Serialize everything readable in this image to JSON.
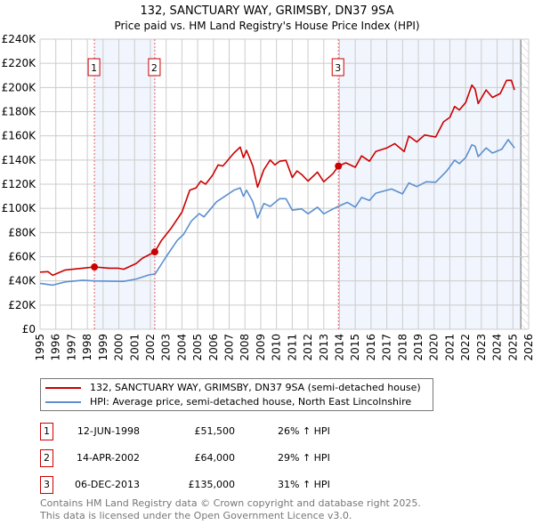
{
  "chart_data": {
    "type": "line",
    "title": "132, SANCTUARY WAY, GRIMSBY, DN37 9SA",
    "subtitle": "Price paid vs. HM Land Registry's House Price Index (HPI)",
    "xlim": [
      1995,
      2026
    ],
    "ylim": [
      0,
      240000
    ],
    "y_ticks": [
      0,
      20000,
      40000,
      60000,
      80000,
      100000,
      120000,
      140000,
      160000,
      180000,
      200000,
      220000,
      240000
    ],
    "y_tick_labels": [
      "£0",
      "£20K",
      "£40K",
      "£60K",
      "£80K",
      "£100K",
      "£120K",
      "£140K",
      "£160K",
      "£180K",
      "£200K",
      "£220K",
      "£240K"
    ],
    "x_ticks": [
      "1995",
      "1996",
      "1997",
      "1998",
      "1999",
      "2000",
      "2001",
      "2002",
      "2003",
      "2004",
      "2005",
      "2006",
      "2007",
      "2008",
      "2009",
      "2010",
      "2011",
      "2012",
      "2013",
      "2014",
      "2015",
      "2016",
      "2017",
      "2018",
      "2019",
      "2020",
      "2021",
      "2022",
      "2023",
      "2024",
      "2025",
      "2026"
    ],
    "grid": true,
    "shaded_periods": [
      [
        1998.45,
        2002.28
      ],
      [
        2013.93,
        2025.5
      ]
    ],
    "future_hatch_from": 2025.5,
    "series": [
      {
        "name": "132, SANCTUARY WAY, GRIMSBY, DN37 9SA (semi-detached house)",
        "color": "#cc0000",
        "x": [
          1995.0,
          1995.5,
          1995.8,
          1996.6,
          1997.7,
          1998.45,
          1999.4,
          1999.95,
          2000.3,
          2001.1,
          2001.5,
          2002.28,
          2002.7,
          2003.3,
          2004.0,
          2004.5,
          2004.9,
          2005.2,
          2005.5,
          2005.95,
          2006.3,
          2006.6,
          2007.3,
          2007.7,
          2007.9,
          2008.1,
          2008.5,
          2008.8,
          2009.2,
          2009.6,
          2009.9,
          2010.2,
          2010.6,
          2011.0,
          2011.3,
          2011.6,
          2012.0,
          2012.6,
          2013.0,
          2013.6,
          2013.93,
          2014.4,
          2015.0,
          2015.4,
          2015.9,
          2016.3,
          2017.0,
          2017.5,
          2018.1,
          2018.4,
          2018.9,
          2019.4,
          2020.1,
          2020.6,
          2021.0,
          2021.3,
          2021.6,
          2022.0,
          2022.4,
          2022.6,
          2022.8,
          2023.3,
          2023.7,
          2024.2,
          2024.6,
          2024.9,
          2025.1
        ],
        "values": [
          47300,
          47600,
          44600,
          49000,
          50500,
          51500,
          50500,
          50500,
          49600,
          54400,
          58800,
          64000,
          73500,
          83300,
          96800,
          115000,
          117000,
          122500,
          120000,
          127400,
          136000,
          135000,
          145800,
          150700,
          142000,
          148000,
          135000,
          117600,
          132000,
          140000,
          136000,
          139000,
          139700,
          125500,
          131000,
          128000,
          122600,
          130000,
          122000,
          129000,
          135000,
          137700,
          134000,
          143400,
          139000,
          147000,
          150000,
          153600,
          147000,
          159800,
          155000,
          160700,
          159000,
          171600,
          175300,
          184300,
          181400,
          187500,
          202000,
          198700,
          186800,
          198000,
          191800,
          195000,
          205900,
          206000,
          198000
        ]
      },
      {
        "name": "HPI: Average price, semi-detached house, North East Lincolnshire",
        "color": "#5b8fd0",
        "x": [
          1995.0,
          1995.8,
          1996.6,
          1997.7,
          1998.45,
          2000.3,
          2001.1,
          2001.9,
          2002.3,
          2003.0,
          2003.7,
          2004.1,
          2004.6,
          2005.1,
          2005.4,
          2006.2,
          2007.3,
          2007.7,
          2007.9,
          2008.1,
          2008.5,
          2008.8,
          2009.2,
          2009.6,
          2010.2,
          2010.6,
          2011.0,
          2011.6,
          2012.0,
          2012.6,
          2013.0,
          2013.6,
          2013.98,
          2014.5,
          2015.0,
          2015.4,
          2015.9,
          2016.3,
          2017.3,
          2018.0,
          2018.4,
          2018.9,
          2019.5,
          2020.1,
          2020.8,
          2021.3,
          2021.6,
          2022.0,
          2022.4,
          2022.6,
          2022.8,
          2023.3,
          2023.7,
          2024.3,
          2024.7,
          2025.1
        ],
        "values": [
          38000,
          36500,
          39200,
          40600,
          40000,
          39600,
          41500,
          44900,
          45800,
          60000,
          73500,
          78400,
          89500,
          95600,
          93000,
          105400,
          115000,
          117000,
          110000,
          115000,
          105400,
          92000,
          104000,
          101600,
          108000,
          108000,
          98500,
          99600,
          95500,
          101000,
          95500,
          99600,
          102000,
          105000,
          101000,
          109000,
          106600,
          112600,
          116000,
          112000,
          121000,
          118000,
          122000,
          121600,
          130900,
          139900,
          137000,
          142000,
          152600,
          151400,
          142800,
          150000,
          145800,
          149000,
          156900,
          150000
        ]
      }
    ],
    "sales": [
      {
        "label": "1",
        "year": 1998.45,
        "value": 51500
      },
      {
        "label": "2",
        "year": 2002.28,
        "value": 64000
      },
      {
        "label": "3",
        "year": 2013.93,
        "value": 135000
      }
    ]
  },
  "legend": {
    "items": [
      {
        "label": "132, SANCTUARY WAY, GRIMSBY, DN37 9SA (semi-detached house)",
        "color": "#cc0000"
      },
      {
        "label": "HPI: Average price, semi-detached house, North East Lincolnshire",
        "color": "#5b8fd0"
      }
    ]
  },
  "table": [
    {
      "num": "1",
      "date": "12-JUN-1998",
      "price": "£51,500",
      "hpi": "26% ↑ HPI"
    },
    {
      "num": "2",
      "date": "14-APR-2002",
      "price": "£64,000",
      "hpi": "29% ↑ HPI"
    },
    {
      "num": "3",
      "date": "06-DEC-2013",
      "price": "£135,000",
      "hpi": "31% ↑ HPI"
    }
  ],
  "footer": {
    "line1": "Contains HM Land Registry data © Crown copyright and database right 2025.",
    "line2": "This data is licensed under the Open Government Licence v3.0."
  }
}
